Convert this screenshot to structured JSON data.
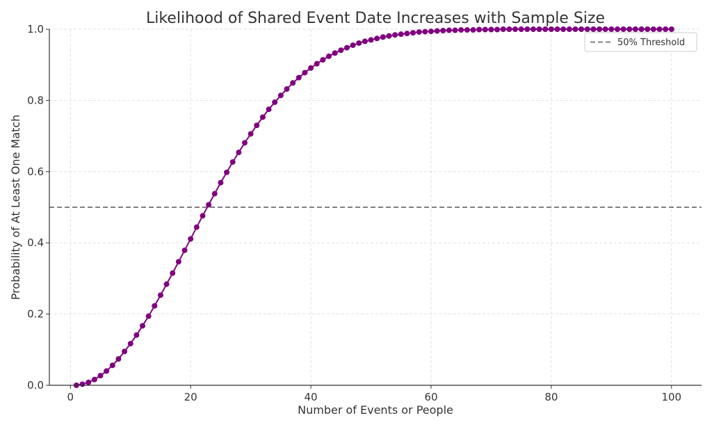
{
  "chart_data": {
    "type": "line",
    "title": "Likelihood of Shared Event Date Increases with Sample Size",
    "xlabel": "Number of Events or People",
    "ylabel": "Probability of At Least One Match",
    "xlim": [
      -3.5,
      105
    ],
    "ylim": [
      0,
      1
    ],
    "xticks": [
      0,
      20,
      40,
      60,
      80,
      100
    ],
    "yticks": [
      0.0,
      0.2,
      0.4,
      0.6,
      0.8,
      1.0
    ],
    "xtick_labels": [
      "0",
      "20",
      "40",
      "60",
      "80",
      "100"
    ],
    "ytick_labels": [
      "0.0",
      "0.2",
      "0.4",
      "0.6",
      "0.8",
      "1.0"
    ],
    "grid": true,
    "legend_position": "top-right",
    "series": [
      {
        "color": "#800080",
        "marker": "circle",
        "x": [
          1,
          2,
          3,
          4,
          5,
          6,
          7,
          8,
          9,
          10,
          11,
          12,
          13,
          14,
          15,
          16,
          17,
          18,
          19,
          20,
          21,
          22,
          23,
          24,
          25,
          26,
          27,
          28,
          29,
          30,
          31,
          32,
          33,
          34,
          35,
          36,
          37,
          38,
          39,
          40,
          41,
          42,
          43,
          44,
          45,
          46,
          47,
          48,
          49,
          50,
          51,
          52,
          53,
          54,
          55,
          56,
          57,
          58,
          59,
          60,
          61,
          62,
          63,
          64,
          65,
          66,
          67,
          68,
          69,
          70,
          71,
          72,
          73,
          74,
          75,
          76,
          77,
          78,
          79,
          80,
          81,
          82,
          83,
          84,
          85,
          86,
          87,
          88,
          89,
          90,
          91,
          92,
          93,
          94,
          95,
          96,
          97,
          98,
          99,
          100
        ],
        "values": [
          0,
          0.003,
          0.008,
          0.016,
          0.027,
          0.04,
          0.056,
          0.074,
          0.095,
          0.117,
          0.141,
          0.167,
          0.194,
          0.223,
          0.253,
          0.284,
          0.315,
          0.347,
          0.379,
          0.411,
          0.444,
          0.476,
          0.507,
          0.538,
          0.569,
          0.598,
          0.627,
          0.654,
          0.681,
          0.706,
          0.73,
          0.753,
          0.775,
          0.795,
          0.814,
          0.832,
          0.849,
          0.864,
          0.878,
          0.891,
          0.903,
          0.914,
          0.924,
          0.933,
          0.941,
          0.948,
          0.955,
          0.961,
          0.966,
          0.97,
          0.974,
          0.978,
          0.981,
          0.984,
          0.986,
          0.988,
          0.99,
          0.992,
          0.993,
          0.994,
          0.995,
          0.996,
          0.997,
          0.997,
          0.998,
          0.998,
          0.998,
          0.999,
          0.999,
          0.999,
          0.999,
          1.0,
          1.0,
          1.0,
          1.0,
          1.0,
          1.0,
          1.0,
          1.0,
          1.0,
          1.0,
          1.0,
          1.0,
          1.0,
          1.0,
          1.0,
          1.0,
          1.0,
          1.0,
          1.0,
          1.0,
          1.0,
          1.0,
          1.0,
          1.0,
          1.0,
          1.0,
          1.0,
          1.0,
          1.0
        ]
      }
    ],
    "threshold": {
      "name": "50% Threshold",
      "value": 0.5,
      "color": "#808080",
      "style": "dashed"
    }
  }
}
